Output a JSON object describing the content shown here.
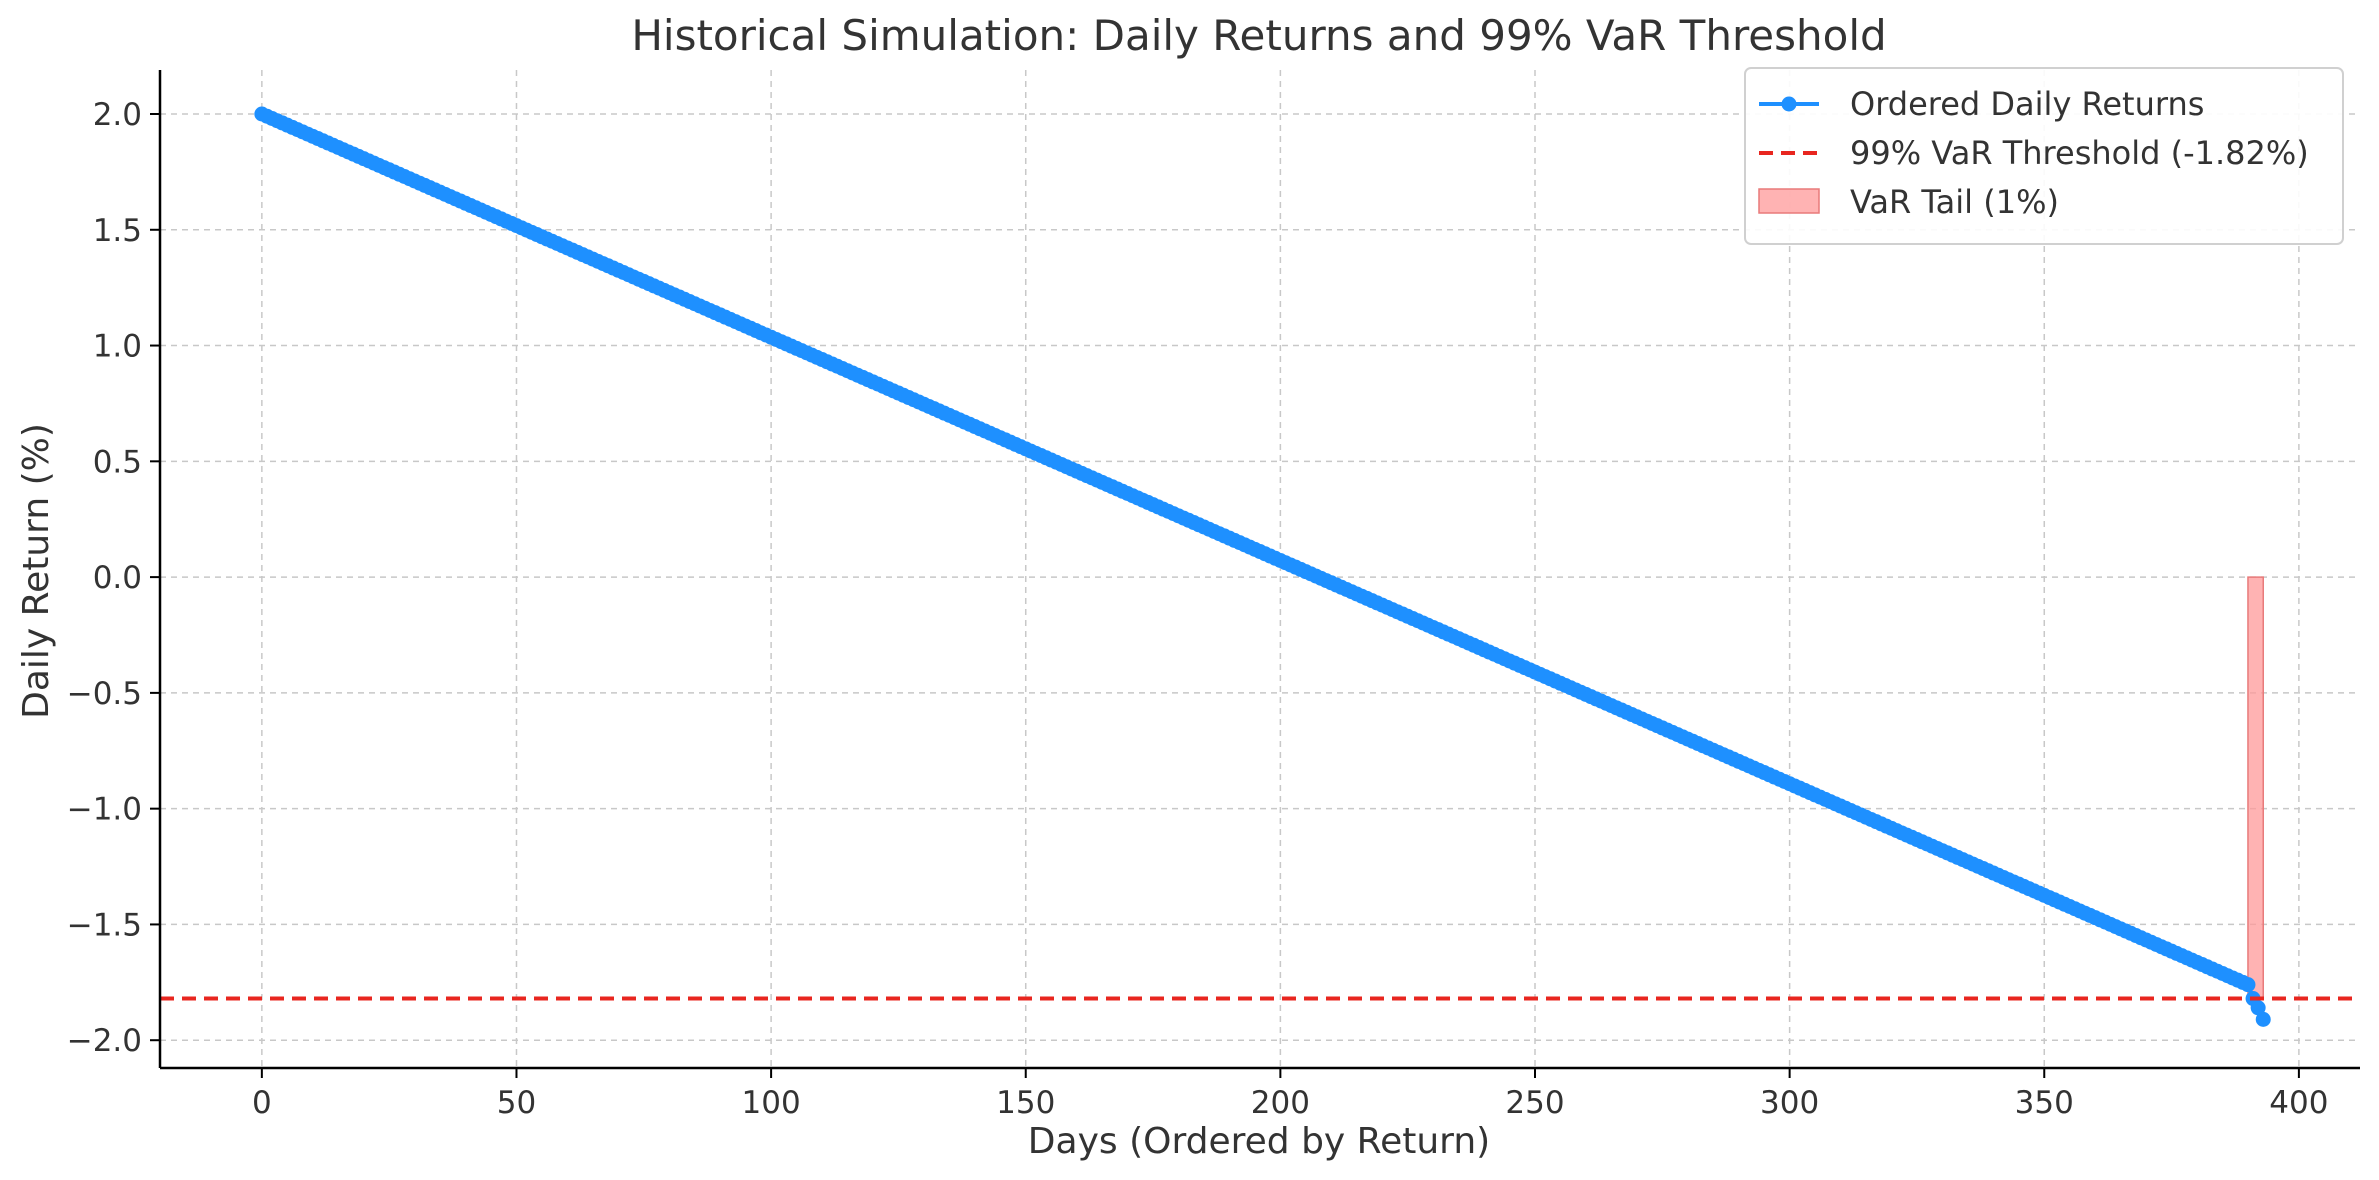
{
  "chart_data": {
    "type": "line",
    "title": "Historical Simulation: Daily Returns and 99% VaR Threshold",
    "xlabel": "Days (Ordered by Return)",
    "ylabel": "Daily Return (%)",
    "xlim": [
      -20,
      412
    ],
    "ylim": [
      -2.12,
      2.19
    ],
    "xticks": [
      0,
      50,
      100,
      150,
      200,
      250,
      300,
      350,
      400
    ],
    "xtick_labels": [
      "0",
      "50",
      "100",
      "150",
      "200",
      "250",
      "300",
      "350",
      "400"
    ],
    "yticks": [
      2.0,
      1.5,
      1.0,
      0.5,
      0.0,
      -0.5,
      -1.0,
      -1.5,
      -2.0
    ],
    "ytick_labels": [
      "2.0",
      "1.5",
      "1.0",
      "0.5",
      "0.0",
      "−0.5",
      "−1.0",
      "−1.5",
      "−2.0"
    ],
    "grid": true,
    "legend_position": "top-right",
    "series": [
      {
        "name": "Ordered Daily Returns",
        "kind": "line-markers",
        "color": "#1e90ff",
        "x_start": 0,
        "x_end": 390,
        "y_start": 2.0,
        "y_end": -1.76,
        "tail_points": [
          [
            391,
            -1.82
          ],
          [
            392,
            -1.86
          ],
          [
            393,
            -1.91
          ]
        ]
      },
      {
        "name": "99% VaR Threshold (-1.82%)",
        "kind": "hline",
        "color": "#e8261f",
        "y": -1.82
      },
      {
        "name": "VaR Tail (1%)",
        "kind": "fill",
        "color": "#ff9a9a",
        "x_range": [
          390,
          393
        ],
        "y_range": [
          -1.82,
          0.0
        ]
      }
    ]
  }
}
